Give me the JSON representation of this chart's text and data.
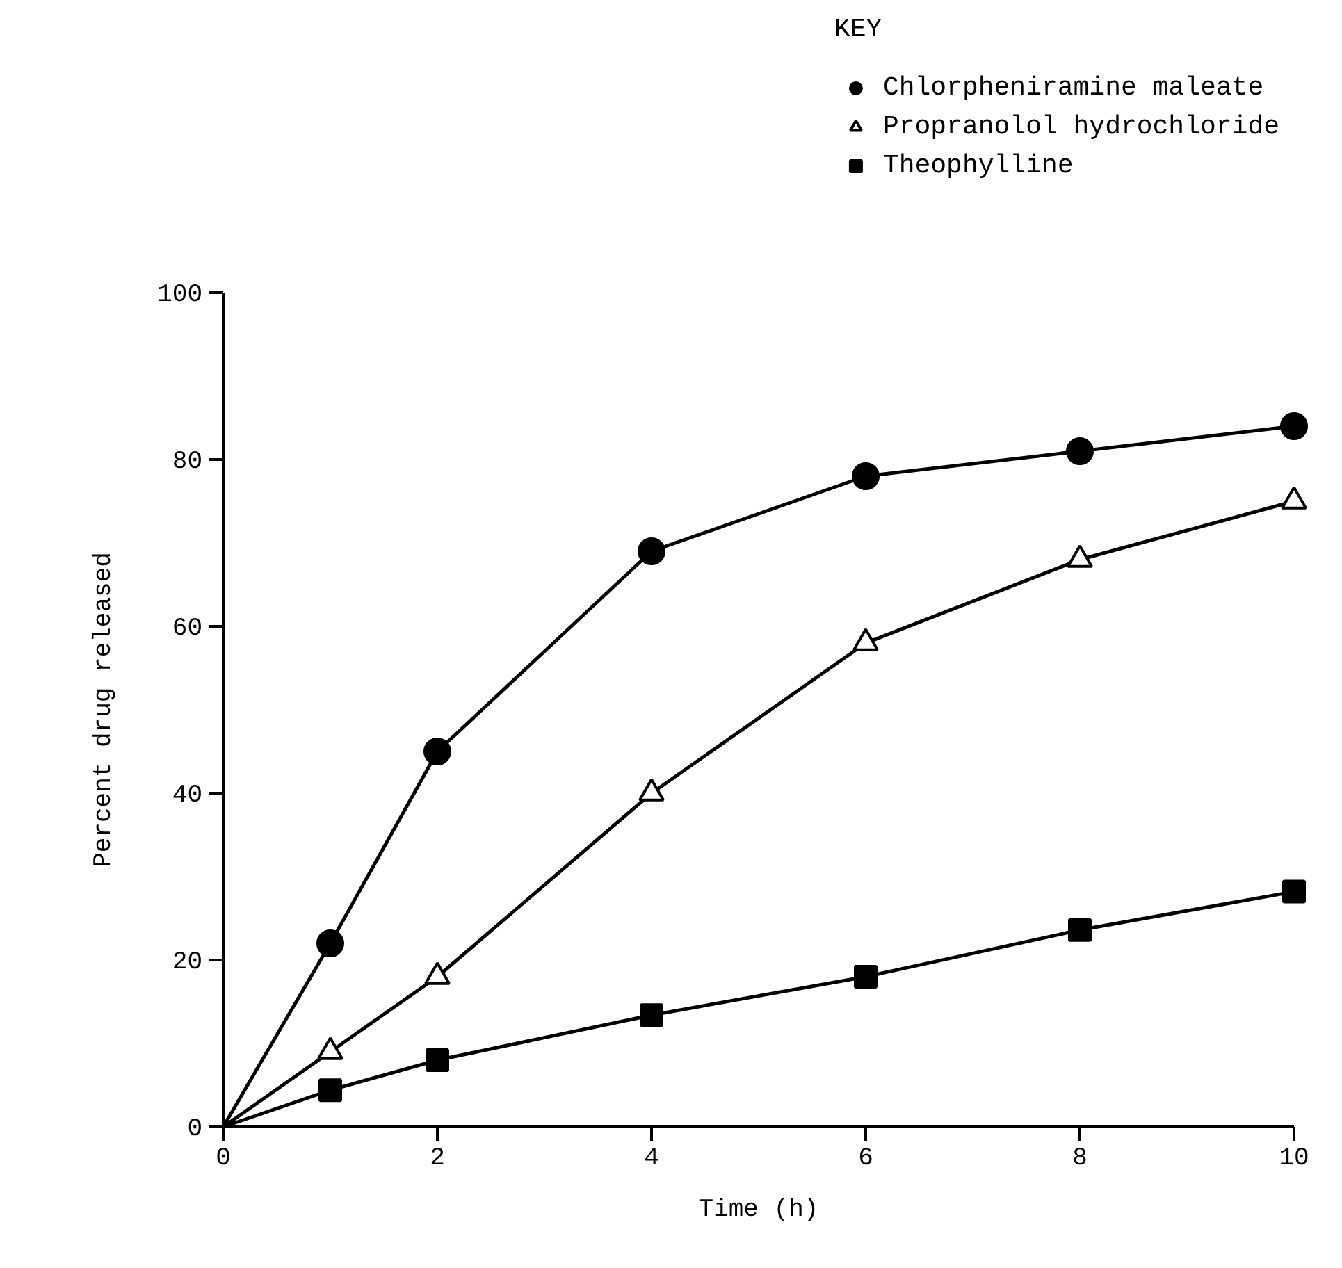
{
  "chart_data": {
    "type": "line",
    "xlabel": "Time (h)",
    "ylabel": "Percent drug released",
    "legend_title": "KEY",
    "legend": "top right",
    "grid": false,
    "xlim": [
      0,
      10
    ],
    "ylim": [
      0,
      100
    ],
    "xticks": [
      0,
      2,
      4,
      6,
      8,
      10
    ],
    "yticks": [
      0,
      20,
      40,
      60,
      80,
      100
    ],
    "series": [
      {
        "name": "Chlorpheniramine maleate",
        "type": "scatter",
        "color": "#000000",
        "marker": "circle",
        "x": [
          1,
          2,
          4,
          6,
          8,
          10
        ],
        "values": [
          22,
          45,
          69,
          78,
          81,
          84
        ]
      },
      {
        "name": "Propranolol hydrochloride",
        "type": "scatter",
        "color": "#000000",
        "marker": "triangle",
        "x": [
          1,
          2,
          4,
          6,
          8,
          10
        ],
        "values": [
          9,
          18,
          40,
          58,
          68,
          75
        ]
      },
      {
        "name": "Theophylline",
        "type": "scatter",
        "color": "#000000",
        "marker": "square",
        "x": [
          1,
          2,
          4,
          6,
          8,
          10
        ],
        "values": [
          4.4,
          8,
          13.4,
          18,
          23.6,
          28.2
        ]
      },
      {
        "color": "#000000",
        "x": [
          0,
          1,
          2,
          4,
          6,
          8,
          10
        ],
        "values": [
          0,
          22,
          45,
          69,
          78,
          81,
          84
        ]
      },
      {
        "color": "#000000",
        "x": [
          0,
          1,
          2,
          4,
          6,
          8,
          10
        ],
        "values": [
          0,
          9,
          18,
          40,
          58,
          68,
          75
        ]
      },
      {
        "color": "#000000",
        "x": [
          0,
          1,
          2,
          4,
          6,
          8,
          10
        ],
        "values": [
          0,
          4.4,
          8,
          13.4,
          18,
          23.6,
          28.2
        ]
      }
    ]
  }
}
